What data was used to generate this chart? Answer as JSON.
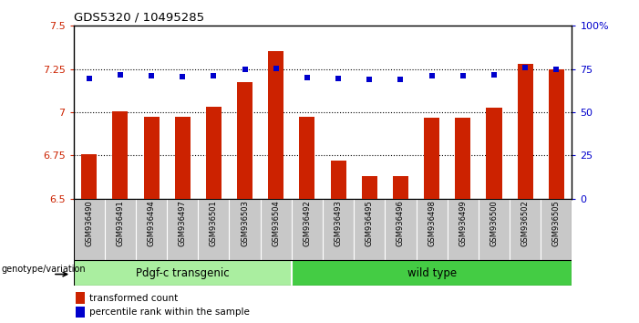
{
  "title": "GDS5320 / 10495285",
  "categories": [
    "GSM936490",
    "GSM936491",
    "GSM936494",
    "GSM936497",
    "GSM936501",
    "GSM936503",
    "GSM936504",
    "GSM936492",
    "GSM936493",
    "GSM936495",
    "GSM936496",
    "GSM936498",
    "GSM936499",
    "GSM936500",
    "GSM936502",
    "GSM936505"
  ],
  "bar_values": [
    6.755,
    7.005,
    6.972,
    6.972,
    7.032,
    7.172,
    7.352,
    6.972,
    6.72,
    6.632,
    6.628,
    6.968,
    6.968,
    7.028,
    7.28,
    7.248
  ],
  "blue_dot_values": [
    69.5,
    71.5,
    71.0,
    70.5,
    71.0,
    74.8,
    75.2,
    70.0,
    69.5,
    69.0,
    69.0,
    71.0,
    71.0,
    71.5,
    76.0,
    75.0
  ],
  "bar_color": "#cc2200",
  "dot_color": "#0000cc",
  "ylim_left": [
    6.5,
    7.5
  ],
  "ylim_right": [
    0,
    100
  ],
  "yticks_left": [
    6.5,
    6.75,
    7.0,
    7.25,
    7.5
  ],
  "ytick_labels_left": [
    "6.5",
    "6.75",
    "7",
    "7.25",
    "7.5"
  ],
  "yticks_right": [
    0,
    25,
    50,
    75,
    100
  ],
  "ytick_labels_right": [
    "0",
    "25",
    "50",
    "75",
    "100%"
  ],
  "hlines": [
    6.75,
    7.0,
    7.25
  ],
  "group1_label": "Pdgf-c transgenic",
  "group2_label": "wild type",
  "group1_count": 7,
  "group2_count": 9,
  "group_label_prefix": "genotype/variation",
  "legend_bar_label": "transformed count",
  "legend_dot_label": "percentile rank within the sample",
  "group1_color": "#aaeea0",
  "group2_color": "#44cc44",
  "xticklabel_bg": "#cccccc"
}
